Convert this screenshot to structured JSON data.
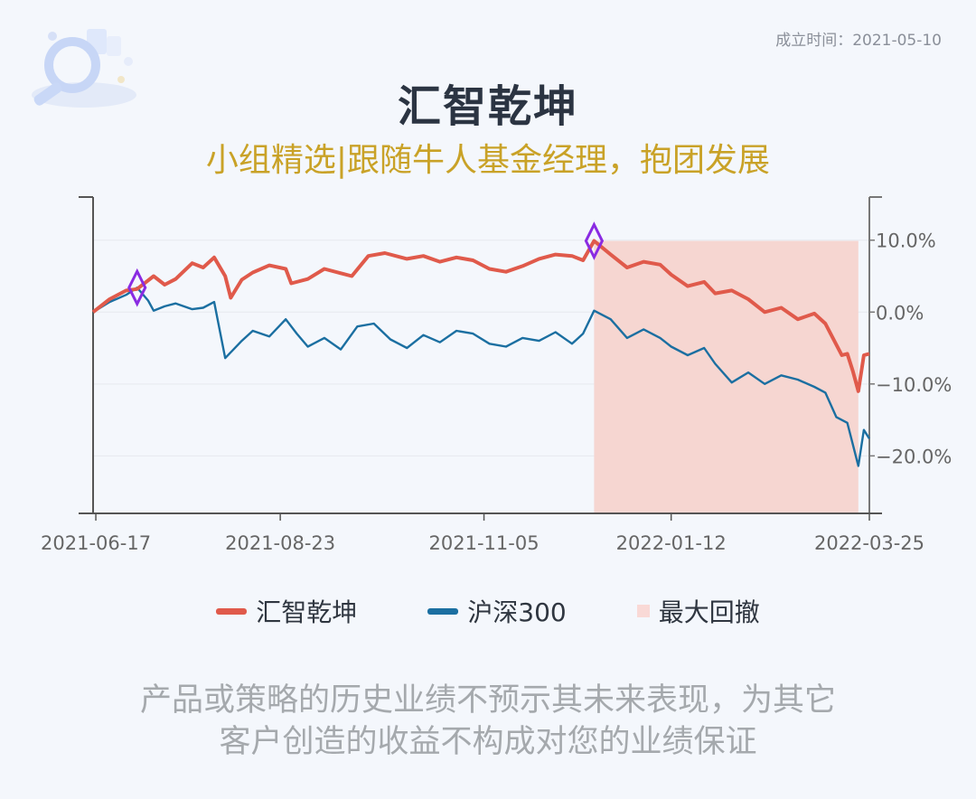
{
  "founded": "成立时间：2021-05-10",
  "title": "汇智乾坤",
  "subtitle": "小组精选|跟随牛人基金经理，抱团发展",
  "disclaimer": [
    "产品或策略的历史业绩不预示其未来表现，为其它",
    "客户创造的收益不构成对您的业绩保证"
  ],
  "legend": [
    {
      "label": "汇智乾坤",
      "color": "#e05a4b"
    },
    {
      "label": "沪深300",
      "color": "#1b6fa1"
    },
    {
      "label": "最大回撤",
      "color": "#f9d9d6"
    }
  ],
  "colors": {
    "fund": "#e05a4b",
    "index": "#1b6fa1",
    "drawdown": "#f6d6d1",
    "marker": "#8a2be2"
  },
  "chart_data": {
    "type": "line",
    "x_ticks": [
      "2021-06-17",
      "2021-08-23",
      "2021-11-05",
      "2022-01-12",
      "2022-03-25"
    ],
    "y_ticks": [
      "10.0%",
      "0.0%",
      "−10.0%",
      "−20.0%"
    ],
    "y_tick_values": [
      10,
      0,
      -10,
      -20
    ],
    "ylim": [
      -28,
      16
    ],
    "xlim": [
      "2021-06-16",
      "2022-03-25"
    ],
    "grid": true,
    "series": [
      {
        "name": "汇智乾坤",
        "points": [
          [
            "2021-06-16",
            0.0
          ],
          [
            "2021-06-22",
            1.8
          ],
          [
            "2021-06-28",
            3.0
          ],
          [
            "2021-07-02",
            3.2
          ],
          [
            "2021-07-08",
            5.0
          ],
          [
            "2021-07-12",
            3.8
          ],
          [
            "2021-07-16",
            4.6
          ],
          [
            "2021-07-22",
            6.8
          ],
          [
            "2021-07-26",
            6.2
          ],
          [
            "2021-07-30",
            7.6
          ],
          [
            "2021-08-03",
            5.0
          ],
          [
            "2021-08-05",
            2.0
          ],
          [
            "2021-08-09",
            4.5
          ],
          [
            "2021-08-13",
            5.5
          ],
          [
            "2021-08-19",
            6.5
          ],
          [
            "2021-08-25",
            6.0
          ],
          [
            "2021-08-27",
            4.0
          ],
          [
            "2021-09-02",
            4.6
          ],
          [
            "2021-09-08",
            6.0
          ],
          [
            "2021-09-14",
            5.4
          ],
          [
            "2021-09-18",
            5.0
          ],
          [
            "2021-09-24",
            7.8
          ],
          [
            "2021-09-30",
            8.2
          ],
          [
            "2021-10-08",
            7.4
          ],
          [
            "2021-10-14",
            7.8
          ],
          [
            "2021-10-20",
            7.0
          ],
          [
            "2021-10-26",
            7.6
          ],
          [
            "2021-11-01",
            7.2
          ],
          [
            "2021-11-07",
            6.0
          ],
          [
            "2021-11-13",
            5.6
          ],
          [
            "2021-11-19",
            6.4
          ],
          [
            "2021-11-25",
            7.4
          ],
          [
            "2021-12-01",
            8.0
          ],
          [
            "2021-12-07",
            7.8
          ],
          [
            "2021-12-11",
            7.2
          ],
          [
            "2021-12-15",
            9.9
          ],
          [
            "2021-12-21",
            8.0
          ],
          [
            "2021-12-27",
            6.2
          ],
          [
            "2022-01-02",
            7.0
          ],
          [
            "2022-01-08",
            6.6
          ],
          [
            "2022-01-12",
            5.2
          ],
          [
            "2022-01-18",
            3.6
          ],
          [
            "2022-01-24",
            4.2
          ],
          [
            "2022-01-28",
            2.6
          ],
          [
            "2022-02-03",
            3.0
          ],
          [
            "2022-02-09",
            1.8
          ],
          [
            "2022-02-15",
            0.0
          ],
          [
            "2022-02-21",
            0.6
          ],
          [
            "2022-02-27",
            -1.0
          ],
          [
            "2022-03-05",
            -0.2
          ],
          [
            "2022-03-09",
            -1.6
          ],
          [
            "2022-03-15",
            -6.0
          ],
          [
            "2022-03-17",
            -5.8
          ],
          [
            "2022-03-19",
            -8.2
          ],
          [
            "2022-03-21",
            -11.0
          ],
          [
            "2022-03-23",
            -6.0
          ],
          [
            "2022-03-25",
            -5.8
          ]
        ]
      },
      {
        "name": "沪深300",
        "points": [
          [
            "2021-06-16",
            0.0
          ],
          [
            "2021-06-22",
            1.4
          ],
          [
            "2021-06-28",
            2.4
          ],
          [
            "2021-07-02",
            3.4
          ],
          [
            "2021-07-06",
            1.6
          ],
          [
            "2021-07-08",
            0.2
          ],
          [
            "2021-07-12",
            0.8
          ],
          [
            "2021-07-16",
            1.2
          ],
          [
            "2021-07-22",
            0.4
          ],
          [
            "2021-07-26",
            0.6
          ],
          [
            "2021-07-30",
            1.4
          ],
          [
            "2021-08-03",
            -6.4
          ],
          [
            "2021-08-09",
            -4.0
          ],
          [
            "2021-08-13",
            -2.6
          ],
          [
            "2021-08-19",
            -3.4
          ],
          [
            "2021-08-25",
            -1.0
          ],
          [
            "2021-08-29",
            -3.0
          ],
          [
            "2021-09-02",
            -4.8
          ],
          [
            "2021-09-08",
            -3.6
          ],
          [
            "2021-09-14",
            -5.2
          ],
          [
            "2021-09-20",
            -2.0
          ],
          [
            "2021-09-26",
            -1.6
          ],
          [
            "2021-10-02",
            -3.8
          ],
          [
            "2021-10-08",
            -5.0
          ],
          [
            "2021-10-14",
            -3.2
          ],
          [
            "2021-10-20",
            -4.2
          ],
          [
            "2021-10-26",
            -2.6
          ],
          [
            "2021-11-01",
            -3.0
          ],
          [
            "2021-11-07",
            -4.4
          ],
          [
            "2021-11-13",
            -4.8
          ],
          [
            "2021-11-19",
            -3.6
          ],
          [
            "2021-11-25",
            -4.0
          ],
          [
            "2021-12-01",
            -2.8
          ],
          [
            "2021-12-07",
            -4.4
          ],
          [
            "2021-12-11",
            -3.0
          ],
          [
            "2021-12-15",
            0.2
          ],
          [
            "2021-12-21",
            -1.0
          ],
          [
            "2021-12-27",
            -3.6
          ],
          [
            "2022-01-02",
            -2.4
          ],
          [
            "2022-01-08",
            -3.6
          ],
          [
            "2022-01-12",
            -4.8
          ],
          [
            "2022-01-18",
            -6.0
          ],
          [
            "2022-01-24",
            -5.0
          ],
          [
            "2022-01-28",
            -7.2
          ],
          [
            "2022-02-03",
            -9.8
          ],
          [
            "2022-02-09",
            -8.4
          ],
          [
            "2022-02-15",
            -10.0
          ],
          [
            "2022-02-21",
            -8.8
          ],
          [
            "2022-02-27",
            -9.4
          ],
          [
            "2022-03-05",
            -10.4
          ],
          [
            "2022-03-09",
            -11.2
          ],
          [
            "2022-03-13",
            -14.6
          ],
          [
            "2022-03-17",
            -15.4
          ],
          [
            "2022-03-21",
            -21.4
          ],
          [
            "2022-03-23",
            -16.4
          ],
          [
            "2022-03-25",
            -17.6
          ]
        ]
      }
    ],
    "drawdown": {
      "start": "2021-12-15",
      "end": "2022-03-21",
      "label": "最大回撤"
    },
    "markers": [
      [
        "2021-07-02",
        3.4
      ],
      [
        "2021-12-15",
        9.9
      ]
    ]
  }
}
